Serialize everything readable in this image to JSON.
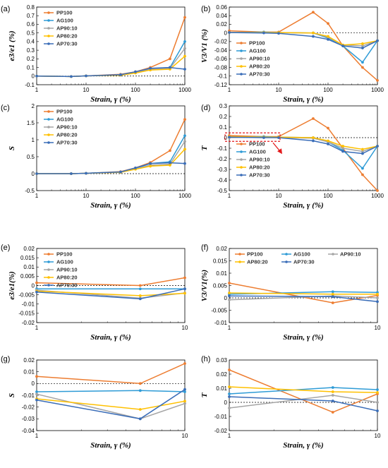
{
  "colors": {
    "PP100": "#ED7D31",
    "AG100": "#2E9BD6",
    "AP90:10": "#A5A5A5",
    "AP80:20": "#FFC000",
    "AP70:30": "#3A6DB8"
  },
  "chart_data": [
    {
      "id": "a",
      "panel_label": "(a)",
      "type": "line",
      "ylabel": "e3/e1 (%)",
      "xlabel": "Strain, γ (%)",
      "x_scale": "log",
      "xlim": [
        1,
        1000
      ],
      "ylim": [
        -0.1,
        0.8
      ],
      "yticks": [
        "-0.1",
        "0",
        "0.1",
        "0.2",
        "0.3",
        "0.4",
        "0.5",
        "0.6",
        "0.7",
        "0.8"
      ],
      "xticks": [
        "1",
        "10",
        "100",
        "1000"
      ],
      "legend": "top-left",
      "baseline": 0,
      "x": [
        1,
        5,
        10,
        50,
        100,
        200,
        500,
        1000
      ],
      "series": [
        {
          "name": "PP100",
          "values": [
            0,
            -0.005,
            0.002,
            0.02,
            0.05,
            0.1,
            0.2,
            0.68
          ]
        },
        {
          "name": "AG100",
          "values": [
            0,
            -0.005,
            0.002,
            0.015,
            0.045,
            0.085,
            0.1,
            0.4
          ]
        },
        {
          "name": "AP90:10",
          "values": [
            0,
            -0.005,
            0.002,
            0.012,
            0.04,
            0.08,
            0.09,
            0.32
          ]
        },
        {
          "name": "AP80:20",
          "values": [
            0,
            -0.005,
            0.002,
            0.01,
            0.035,
            0.07,
            0.08,
            0.23
          ]
        },
        {
          "name": "AP70:30",
          "values": [
            0,
            -0.005,
            0.002,
            0.015,
            0.05,
            0.09,
            0.1,
            0.08
          ]
        }
      ]
    },
    {
      "id": "b",
      "panel_label": "(b)",
      "type": "line",
      "ylabel": "V3/V1 (%)",
      "xlabel": "Strain, γ (%)",
      "x_scale": "log",
      "xlim": [
        1,
        1000
      ],
      "ylim": [
        -0.12,
        0.06
      ],
      "yticks": [
        "-0.12",
        "-0.1",
        "-0.08",
        "-0.06",
        "-0.04",
        "-0.02",
        "0",
        "0.02",
        "0.04",
        "0.06"
      ],
      "xticks": [
        "1",
        "10",
        "100",
        "1000"
      ],
      "legend": "bottom-left",
      "baseline": 0,
      "x": [
        1,
        5,
        10,
        50,
        100,
        200,
        500,
        1000
      ],
      "series": [
        {
          "name": "PP100",
          "values": [
            0.005,
            0.002,
            0.002,
            0.048,
            0.022,
            -0.03,
            -0.08,
            -0.11
          ]
        },
        {
          "name": "AG100",
          "values": [
            0.001,
            0.002,
            0.001,
            0,
            -0.012,
            -0.03,
            -0.068,
            -0.018
          ]
        },
        {
          "name": "AP90:10",
          "values": [
            0.001,
            0.001,
            0.001,
            0,
            -0.01,
            -0.028,
            -0.03,
            -0.018
          ]
        },
        {
          "name": "AP80:20",
          "values": [
            0.001,
            0.001,
            0.001,
            0,
            -0.008,
            -0.028,
            -0.025,
            -0.018
          ]
        },
        {
          "name": "AP70:30",
          "values": [
            0.001,
            0,
            -0.001,
            -0.008,
            -0.015,
            -0.03,
            -0.035,
            -0.018
          ]
        }
      ]
    },
    {
      "id": "c",
      "panel_label": "(c)",
      "type": "line",
      "ylabel": "S",
      "xlabel": "Strain, γ (%)",
      "x_scale": "log",
      "xlim": [
        1,
        1000
      ],
      "ylim": [
        -0.5,
        2
      ],
      "yticks": [
        "-0.5",
        "0",
        "0.5",
        "1",
        "1.5",
        "2"
      ],
      "xticks": [
        "1",
        "10",
        "100",
        "1000"
      ],
      "legend": "top-left",
      "baseline": 0,
      "x": [
        1,
        5,
        10,
        50,
        100,
        200,
        500,
        1000
      ],
      "series": [
        {
          "name": "PP100",
          "values": [
            0,
            0,
            0.01,
            0.06,
            0.17,
            0.33,
            0.68,
            1.6
          ]
        },
        {
          "name": "AG100",
          "values": [
            0,
            0,
            0.01,
            0.05,
            0.15,
            0.3,
            0.35,
            1.12
          ]
        },
        {
          "name": "AP90:10",
          "values": [
            0,
            0,
            0.01,
            0.04,
            0.14,
            0.25,
            0.28,
            0.95
          ]
        },
        {
          "name": "AP80:20",
          "values": [
            0,
            0,
            0.01,
            0.04,
            0.13,
            0.22,
            0.25,
            0.72
          ]
        },
        {
          "name": "AP70:30",
          "values": [
            0,
            0,
            0.01,
            0.05,
            0.17,
            0.3,
            0.32,
            0.3
          ]
        }
      ]
    },
    {
      "id": "d",
      "panel_label": "(d)",
      "type": "line",
      "ylabel": "T",
      "xlabel": "Strain, γ (%)",
      "x_scale": "log",
      "xlim": [
        1,
        1000
      ],
      "ylim": [
        -0.5,
        0.3
      ],
      "yticks": [
        "-0.5",
        "-0.4",
        "-0.3",
        "-0.2",
        "-0.1",
        "0",
        "0.1",
        "0.2",
        "0.3"
      ],
      "xticks": [
        "1",
        "10",
        "100",
        "1000"
      ],
      "legend": "bottom-left",
      "baseline": 0,
      "x": [
        1,
        5,
        10,
        50,
        100,
        200,
        500,
        1000
      ],
      "series": [
        {
          "name": "PP100",
          "values": [
            0.02,
            0.01,
            0.01,
            0.18,
            0.09,
            -0.1,
            -0.35,
            -0.5
          ]
        },
        {
          "name": "AG100",
          "values": [
            0.005,
            0.01,
            0.005,
            0,
            -0.04,
            -0.12,
            -0.29,
            -0.08
          ]
        },
        {
          "name": "AP90:10",
          "values": [
            0,
            0.005,
            0,
            -0.005,
            -0.04,
            -0.1,
            -0.13,
            -0.08
          ]
        },
        {
          "name": "AP80:20",
          "values": [
            0.01,
            0.005,
            0.005,
            0,
            -0.03,
            -0.08,
            -0.11,
            -0.08
          ]
        },
        {
          "name": "AP70:30",
          "values": [
            0.005,
            0,
            0,
            -0.03,
            -0.06,
            -0.13,
            -0.15,
            -0.08
          ]
        }
      ]
    },
    {
      "id": "e",
      "panel_label": "(e)",
      "type": "line",
      "ylabel": "e3/e1(%)",
      "xlabel": "Strain, γ (%)",
      "x_scale": "log",
      "xlim": [
        1,
        10
      ],
      "ylim": [
        -0.02,
        0.02
      ],
      "yticks": [
        "-0.02",
        "-0.015",
        "-0.01",
        "-0.005",
        "0",
        "0.005",
        "0.01",
        "0.015",
        "0.02"
      ],
      "xticks": [
        "1",
        "10"
      ],
      "legend": "top-left",
      "baseline": 0,
      "x": [
        1,
        5,
        10
      ],
      "series": [
        {
          "name": "PP100",
          "values": [
            0.0015,
            0.0,
            0.0042
          ]
        },
        {
          "name": "AG100",
          "values": [
            -0.0018,
            -0.0018,
            -0.0018
          ]
        },
        {
          "name": "AP90:10",
          "values": [
            -0.0025,
            -0.0068,
            -0.004
          ]
        },
        {
          "name": "AP80:20",
          "values": [
            -0.003,
            -0.0055,
            -0.0042
          ]
        },
        {
          "name": "AP70:30",
          "values": [
            -0.0035,
            -0.0072,
            -0.0018
          ]
        }
      ]
    },
    {
      "id": "f",
      "panel_label": "(f)",
      "type": "line",
      "ylabel": "V3/V1(%)",
      "xlabel": "Strain, γ (%)",
      "x_scale": "log",
      "xlim": [
        1,
        10
      ],
      "ylim": [
        -0.01,
        0.02
      ],
      "yticks": [
        "-0.01",
        "-0.005",
        "0",
        "0.005",
        "0.01",
        "0.015",
        "0.02"
      ],
      "xticks": [
        "1",
        "10"
      ],
      "legend": "top-rows",
      "baseline": 0,
      "x": [
        1,
        5,
        10
      ],
      "series": [
        {
          "name": "PP100",
          "values": [
            0.006,
            -0.002,
            0.001
          ]
        },
        {
          "name": "AG100",
          "values": [
            0.0015,
            0.0025,
            0.0022
          ]
        },
        {
          "name": "AP90:10",
          "values": [
            -0.0008,
            0.0008,
            0.0
          ]
        },
        {
          "name": "AP80:20",
          "values": [
            0.002,
            0.0015,
            0.0015
          ]
        },
        {
          "name": "AP70:30",
          "values": [
            0.0008,
            0.0005,
            -0.0015
          ]
        }
      ]
    },
    {
      "id": "g",
      "panel_label": "(g)",
      "type": "line",
      "ylabel": "S",
      "xlabel": "Strain, γ (%)",
      "x_scale": "log",
      "xlim": [
        1,
        10
      ],
      "ylim": [
        -0.04,
        0.02
      ],
      "yticks": [
        "-0.04",
        "-0.03",
        "-0.02",
        "-0.01",
        "0",
        "0.01",
        "0.02"
      ],
      "xticks": [
        "1",
        "10"
      ],
      "legend": "none",
      "baseline": 0,
      "x": [
        1,
        5,
        10
      ],
      "series": [
        {
          "name": "PP100",
          "values": [
            0.006,
            0.0,
            0.017
          ]
        },
        {
          "name": "AG100",
          "values": [
            -0.007,
            -0.006,
            -0.007
          ]
        },
        {
          "name": "AP90:10",
          "values": [
            -0.009,
            -0.03,
            -0.017
          ]
        },
        {
          "name": "AP80:20",
          "values": [
            -0.013,
            -0.022,
            -0.015
          ]
        },
        {
          "name": "AP70:30",
          "values": [
            -0.014,
            -0.03,
            -0.005
          ]
        }
      ]
    },
    {
      "id": "h",
      "panel_label": "(h)",
      "type": "line",
      "ylabel": "T",
      "xlabel": "Strain, γ (%)",
      "x_scale": "log",
      "xlim": [
        1,
        10
      ],
      "ylim": [
        -0.02,
        0.03
      ],
      "yticks": [
        "-0.02",
        "-0.01",
        "0",
        "0.01",
        "0.02",
        "0.03"
      ],
      "xticks": [
        "1",
        "10"
      ],
      "legend": "none",
      "baseline": 0,
      "x": [
        1,
        5,
        10
      ],
      "series": [
        {
          "name": "PP100",
          "values": [
            0.023,
            -0.007,
            0.006
          ]
        },
        {
          "name": "AG100",
          "values": [
            0.006,
            0.0105,
            0.009
          ]
        },
        {
          "name": "AP90:10",
          "values": [
            -0.004,
            0.005,
            0.0
          ]
        },
        {
          "name": "AP80:20",
          "values": [
            0.011,
            0.0075,
            0.007
          ]
        },
        {
          "name": "AP70:30",
          "values": [
            0.004,
            0.001,
            -0.006
          ]
        }
      ]
    }
  ]
}
